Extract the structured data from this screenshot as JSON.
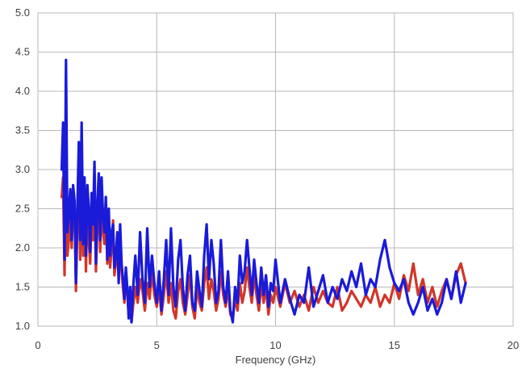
{
  "chart_data": {
    "type": "line",
    "title": "",
    "xlabel": "Frequency (GHz)",
    "ylabel": "",
    "xlim": [
      0,
      20
    ],
    "ylim": [
      1.0,
      5.0
    ],
    "xticks": [
      "0",
      "5",
      "10",
      "15",
      "20"
    ],
    "yticks": [
      "1.0",
      "1.5",
      "2.0",
      "2.5",
      "3.0",
      "3.5",
      "4.0",
      "4.5",
      "5.0"
    ],
    "grid": true,
    "legend": "none",
    "series": [
      {
        "color": "#d0362a",
        "x": [
          1.0,
          1.06,
          1.12,
          1.18,
          1.24,
          1.3,
          1.36,
          1.42,
          1.48,
          1.54,
          1.6,
          1.66,
          1.72,
          1.78,
          1.84,
          1.9,
          1.96,
          2.02,
          2.08,
          2.14,
          2.2,
          2.26,
          2.32,
          2.38,
          2.44,
          2.5,
          2.56,
          2.62,
          2.68,
          2.74,
          2.8,
          2.86,
          2.92,
          2.98,
          3.04,
          3.1,
          3.16,
          3.22,
          3.28,
          3.34,
          3.4,
          3.46,
          3.52,
          3.58,
          3.64,
          3.7,
          3.76,
          3.82,
          3.88,
          3.94,
          4.0,
          4.1,
          4.2,
          4.3,
          4.4,
          4.5,
          4.6,
          4.7,
          4.8,
          4.9,
          5.0,
          5.1,
          5.2,
          5.3,
          5.4,
          5.5,
          5.6,
          5.7,
          5.8,
          5.9,
          6.0,
          6.1,
          6.2,
          6.3,
          6.4,
          6.5,
          6.6,
          6.7,
          6.8,
          6.9,
          7.0,
          7.1,
          7.2,
          7.3,
          7.4,
          7.5,
          7.6,
          7.7,
          7.8,
          7.9,
          8.0,
          8.1,
          8.2,
          8.3,
          8.4,
          8.5,
          8.6,
          8.7,
          8.8,
          8.9,
          9.0,
          9.1,
          9.2,
          9.3,
          9.4,
          9.5,
          9.6,
          9.7,
          9.8,
          9.9,
          10.0,
          10.2,
          10.4,
          10.6,
          10.8,
          11.0,
          11.2,
          11.4,
          11.6,
          11.8,
          12.0,
          12.2,
          12.4,
          12.6,
          12.8,
          13.0,
          13.2,
          13.4,
          13.6,
          13.8,
          14.0,
          14.2,
          14.4,
          14.6,
          14.8,
          15.0,
          15.2,
          15.4,
          15.6,
          15.8,
          16.0,
          16.2,
          16.4,
          16.6,
          16.8,
          17.0,
          17.2,
          17.4,
          17.6,
          17.8,
          18.0
        ],
        "y": [
          2.65,
          2.9,
          1.65,
          3.05,
          1.9,
          2.1,
          2.6,
          2.0,
          2.45,
          2.55,
          1.45,
          2.3,
          2.9,
          1.85,
          3.25,
          1.9,
          2.8,
          1.7,
          2.6,
          2.1,
          1.8,
          2.5,
          2.1,
          2.9,
          1.7,
          2.25,
          2.7,
          1.95,
          2.65,
          2.2,
          2.05,
          2.5,
          1.8,
          2.3,
          1.75,
          2.0,
          2.35,
          1.65,
          1.8,
          2.1,
          1.6,
          2.2,
          1.7,
          1.5,
          1.3,
          1.65,
          1.45,
          1.15,
          1.4,
          1.05,
          1.25,
          1.5,
          1.3,
          1.6,
          1.45,
          1.2,
          1.55,
          1.35,
          1.7,
          1.4,
          1.25,
          1.5,
          1.15,
          1.4,
          1.7,
          1.3,
          1.55,
          1.2,
          1.1,
          1.45,
          1.6,
          1.3,
          1.15,
          1.4,
          1.65,
          1.25,
          1.1,
          1.5,
          1.3,
          1.2,
          1.55,
          1.75,
          1.35,
          1.6,
          1.45,
          1.2,
          1.35,
          1.7,
          1.4,
          1.25,
          1.5,
          1.15,
          1.1,
          1.35,
          1.2,
          1.55,
          1.3,
          1.45,
          1.75,
          1.5,
          1.3,
          1.65,
          1.4,
          1.2,
          1.55,
          1.3,
          1.5,
          1.15,
          1.4,
          1.3,
          1.5,
          1.25,
          1.55,
          1.3,
          1.45,
          1.25,
          1.4,
          1.2,
          1.5,
          1.3,
          1.45,
          1.3,
          1.25,
          1.5,
          1.2,
          1.3,
          1.45,
          1.35,
          1.25,
          1.4,
          1.3,
          1.5,
          1.25,
          1.4,
          1.3,
          1.55,
          1.35,
          1.65,
          1.45,
          1.8,
          1.4,
          1.6,
          1.3,
          1.5,
          1.25,
          1.45,
          1.6,
          1.35,
          1.65,
          1.8,
          1.55
        ]
      },
      {
        "color": "#1a1ad9",
        "x": [
          1.0,
          1.06,
          1.12,
          1.18,
          1.24,
          1.3,
          1.36,
          1.42,
          1.48,
          1.54,
          1.6,
          1.66,
          1.72,
          1.78,
          1.84,
          1.9,
          1.96,
          2.02,
          2.08,
          2.14,
          2.2,
          2.26,
          2.32,
          2.38,
          2.44,
          2.5,
          2.56,
          2.62,
          2.68,
          2.74,
          2.8,
          2.86,
          2.92,
          2.98,
          3.04,
          3.1,
          3.16,
          3.22,
          3.28,
          3.34,
          3.4,
          3.46,
          3.52,
          3.58,
          3.64,
          3.7,
          3.76,
          3.82,
          3.88,
          3.94,
          4.0,
          4.1,
          4.2,
          4.3,
          4.4,
          4.5,
          4.6,
          4.7,
          4.8,
          4.9,
          5.0,
          5.1,
          5.2,
          5.3,
          5.4,
          5.5,
          5.6,
          5.7,
          5.8,
          5.9,
          6.0,
          6.1,
          6.2,
          6.3,
          6.4,
          6.5,
          6.6,
          6.7,
          6.8,
          6.9,
          7.0,
          7.1,
          7.2,
          7.3,
          7.4,
          7.5,
          7.6,
          7.7,
          7.8,
          7.9,
          8.0,
          8.1,
          8.2,
          8.3,
          8.4,
          8.5,
          8.6,
          8.7,
          8.8,
          8.9,
          9.0,
          9.1,
          9.2,
          9.3,
          9.4,
          9.5,
          9.6,
          9.7,
          9.8,
          9.9,
          10.0,
          10.2,
          10.4,
          10.6,
          10.8,
          11.0,
          11.2,
          11.4,
          11.6,
          11.8,
          12.0,
          12.2,
          12.4,
          12.6,
          12.8,
          13.0,
          13.2,
          13.4,
          13.6,
          13.8,
          14.0,
          14.2,
          14.4,
          14.6,
          14.8,
          15.0,
          15.2,
          15.4,
          15.6,
          15.8,
          16.0,
          16.2,
          16.4,
          16.6,
          16.8,
          17.0,
          17.2,
          17.4,
          17.6,
          17.8,
          18.0
        ],
        "y": [
          3.0,
          3.6,
          1.85,
          4.4,
          2.2,
          2.45,
          2.75,
          2.1,
          2.8,
          2.6,
          1.55,
          2.5,
          3.35,
          2.1,
          3.6,
          2.05,
          2.9,
          1.9,
          2.8,
          2.5,
          1.95,
          2.7,
          2.3,
          3.1,
          1.8,
          2.5,
          2.95,
          2.1,
          2.9,
          2.4,
          2.2,
          2.65,
          1.85,
          2.5,
          1.9,
          2.2,
          2.3,
          1.75,
          1.9,
          2.2,
          1.55,
          2.3,
          1.8,
          1.6,
          1.35,
          1.75,
          1.5,
          1.1,
          1.5,
          1.05,
          1.45,
          1.9,
          1.4,
          2.2,
          1.6,
          1.3,
          2.25,
          1.5,
          1.9,
          1.55,
          1.3,
          1.7,
          1.2,
          1.6,
          2.1,
          1.4,
          2.25,
          1.5,
          1.25,
          1.85,
          2.1,
          1.5,
          1.2,
          1.65,
          1.9,
          1.3,
          1.2,
          1.7,
          1.45,
          1.25,
          1.9,
          2.3,
          1.6,
          2.1,
          1.8,
          1.3,
          1.45,
          2.1,
          1.5,
          1.3,
          1.7,
          1.2,
          1.05,
          1.5,
          1.3,
          1.9,
          1.55,
          1.7,
          2.1,
          1.75,
          1.4,
          1.85,
          1.55,
          1.3,
          1.75,
          1.4,
          1.65,
          1.25,
          1.55,
          1.45,
          1.85,
          1.3,
          1.6,
          1.35,
          1.15,
          1.4,
          1.3,
          1.75,
          1.25,
          1.45,
          1.65,
          1.3,
          1.5,
          1.35,
          1.6,
          1.45,
          1.7,
          1.5,
          1.8,
          1.4,
          1.6,
          1.5,
          1.85,
          2.1,
          1.75,
          1.55,
          1.45,
          1.6,
          1.3,
          1.15,
          1.3,
          1.5,
          1.2,
          1.35,
          1.15,
          1.3,
          1.6,
          1.35,
          1.7,
          1.3,
          1.55
        ]
      }
    ]
  }
}
